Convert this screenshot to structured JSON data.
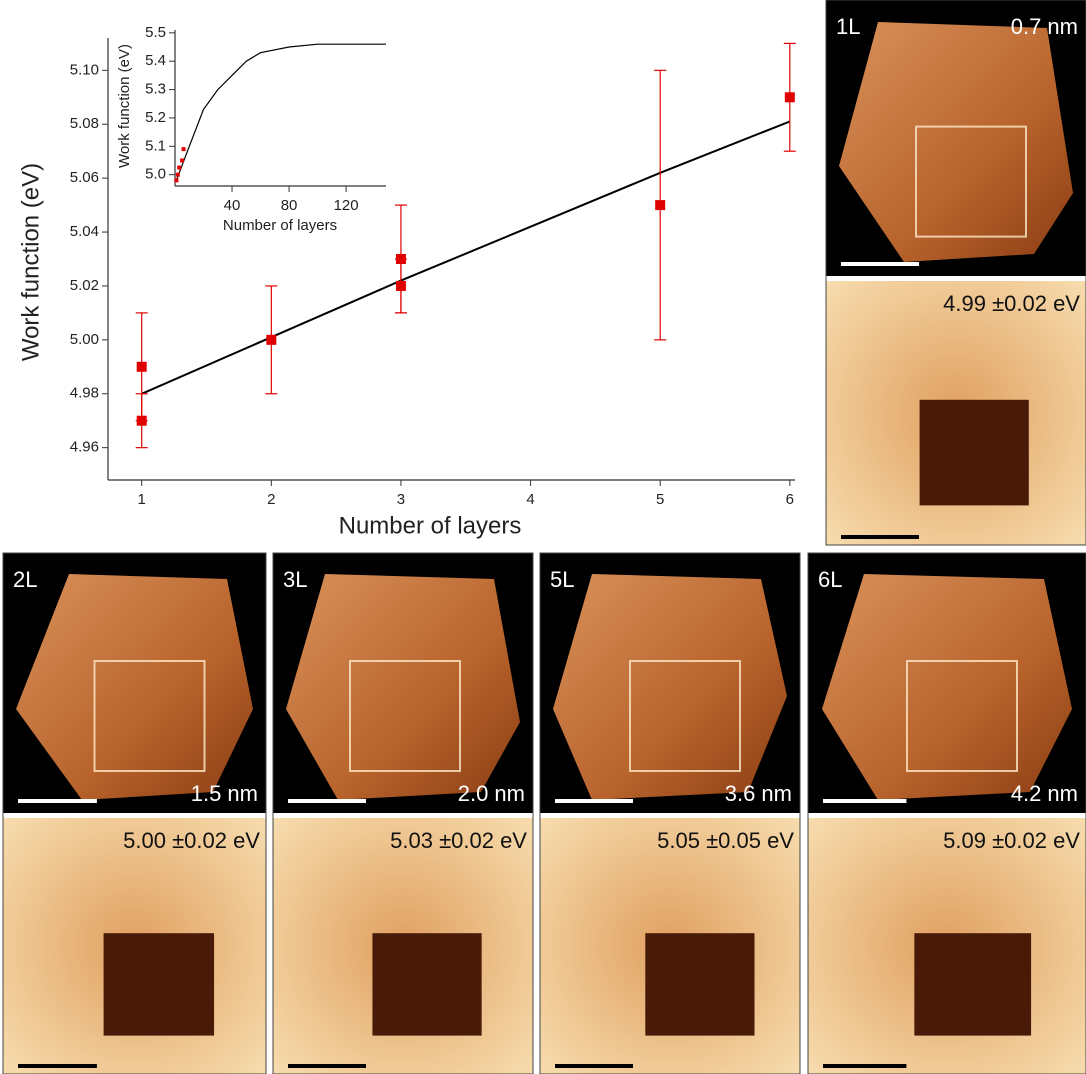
{
  "chart_data": [
    {
      "type": "scatter",
      "x_label": "Number of layers",
      "y_label": "Work function (eV)",
      "xlim": [
        0.74,
        6.04
      ],
      "ylim": [
        4.948,
        5.112
      ],
      "xticks": [
        1,
        2,
        3,
        4,
        5,
        6
      ],
      "yticks": [
        4.96,
        4.98,
        {
          "value": 5,
          "label": "5.00"
        },
        5.02,
        5.04,
        5.06,
        5.08,
        {
          "value": 5.1,
          "label": "5.10"
        }
      ],
      "series": [
        {
          "color": "#e00000",
          "x": [
            1,
            1,
            2,
            3,
            3,
            5,
            6
          ],
          "values": [
            4.99,
            4.97,
            5.0,
            5.03,
            5.02,
            5.05,
            5.09
          ],
          "errors": [
            0.02,
            0.01,
            0.02,
            0.02,
            0.01,
            0.05,
            0.02
          ]
        },
        {
          "color": "#000000",
          "x": [
            1,
            2,
            3,
            4,
            5,
            6
          ],
          "values": [
            4.98,
            5.001,
            5.022,
            5.042,
            5.062,
            5.081
          ]
        }
      ]
    },
    {
      "type": "line",
      "x_label": "Number of layers",
      "y_label": "Work function (eV)",
      "xlim": [
        0,
        148
      ],
      "ylim": [
        4.96,
        5.51
      ],
      "xticks": [
        40,
        80,
        120
      ],
      "yticks": [
        {
          "value": 5,
          "label": "5.0"
        },
        5.1,
        5.2,
        5.3,
        5.4,
        5.5
      ],
      "series": [
        {
          "color": "#000000",
          "x": [
            1,
            10,
            20,
            30,
            40,
            50,
            60,
            80,
            100,
            148
          ],
          "values": [
            4.98,
            5.1,
            5.23,
            5.3,
            5.35,
            5.4,
            5.43,
            5.45,
            5.46,
            5.46
          ]
        },
        {
          "color": "#e00000",
          "x": [
            1,
            2,
            3,
            5,
            6
          ],
          "values": [
            4.98,
            5.0,
            5.025,
            5.05,
            5.09
          ]
        }
      ]
    }
  ],
  "panels": [
    {
      "layer": "1L",
      "height": "0.7 nm",
      "work_function": "4.99 ±0.02 eV"
    },
    {
      "layer": "2L",
      "height": "1.5 nm",
      "work_function": "5.00 ±0.02 eV"
    },
    {
      "layer": "3L",
      "height": "2.0 nm",
      "work_function": "5.03 ±0.02 eV"
    },
    {
      "layer": "5L",
      "height": "3.6 nm",
      "work_function": "5.05 ±0.05 eV"
    },
    {
      "layer": "6L",
      "height": "4.2 nm",
      "work_function": "5.09 ±0.02 eV"
    }
  ]
}
